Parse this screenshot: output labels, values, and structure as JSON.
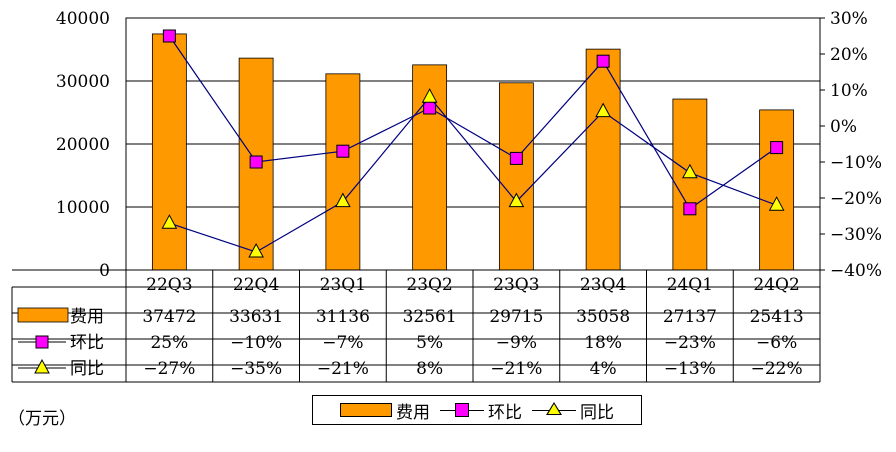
{
  "unit_label": "（万元）",
  "legend": {
    "bar_label": "费用",
    "qoq_label": "环比",
    "yoy_label": "同比"
  },
  "table": {
    "rows": [
      {
        "label": "费用",
        "values": [
          "37472",
          "33631",
          "31136",
          "32561",
          "29715",
          "35058",
          "27137",
          "25413"
        ]
      },
      {
        "label": "环比",
        "values": [
          "25%",
          "-10%",
          "-7%",
          "5%",
          "-9%",
          "18%",
          "-23%",
          "-6%"
        ]
      },
      {
        "label": "同比",
        "values": [
          "-27%",
          "-35%",
          "-21%",
          "8%",
          "-21%",
          "4%",
          "-13%",
          "-22%"
        ]
      }
    ]
  },
  "colors": {
    "bar": "#ff9900",
    "qoq_marker": "#ff00ff",
    "yoy_marker": "#ffff00",
    "line": "#000080"
  },
  "chart_data": {
    "type": "bar",
    "categories": [
      "22Q3",
      "22Q4",
      "23Q1",
      "23Q2",
      "23Q3",
      "23Q4",
      "24Q1",
      "24Q2"
    ],
    "series": [
      {
        "name": "费用",
        "type": "bar",
        "axis": "left",
        "values": [
          37472,
          33631,
          31136,
          32561,
          29715,
          35058,
          27137,
          25413
        ]
      },
      {
        "name": "环比",
        "type": "line",
        "axis": "right",
        "values": [
          25,
          -10,
          -7,
          5,
          -9,
          18,
          -23,
          -6
        ]
      },
      {
        "name": "同比",
        "type": "line",
        "axis": "right",
        "values": [
          -27,
          -35,
          -21,
          8,
          -21,
          4,
          -13,
          -22
        ]
      }
    ],
    "y_left": {
      "ylim": [
        0,
        40000
      ],
      "ticks": [
        "0",
        "10000",
        "20000",
        "30000",
        "40000"
      ]
    },
    "y_right": {
      "ylim": [
        -40,
        30
      ],
      "ticks": [
        "-40%",
        "-30%",
        "-20%",
        "-10%",
        "0%",
        "10%",
        "20%",
        "30%"
      ]
    },
    "grid": true,
    "legend_position": "bottom"
  }
}
